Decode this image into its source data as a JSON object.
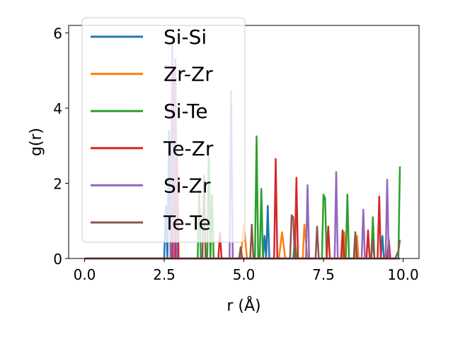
{
  "chart_data": {
    "type": "line",
    "title": "",
    "xlabel": "r (Å)",
    "ylabel": "g(r)",
    "xlim": [
      -0.5,
      10.5
    ],
    "ylim": [
      0,
      6.2
    ],
    "xticks": [
      0,
      2.5,
      5,
      7.5,
      10
    ],
    "xtick_labels": [
      "0.0",
      "2.5",
      "5.0",
      "7.5",
      "10.0"
    ],
    "yticks": [
      0,
      2,
      4,
      6
    ],
    "ytick_labels": [
      "0",
      "2",
      "4",
      "6"
    ],
    "grid": false,
    "legend_position": "top-left",
    "series": [
      {
        "name": "Si-Si",
        "color": "#1f77b4",
        "points": [
          [
            0,
            0
          ],
          [
            2.5,
            0
          ],
          [
            2.55,
            1.4
          ],
          [
            2.6,
            0
          ],
          [
            2.65,
            3.4
          ],
          [
            2.7,
            0
          ],
          [
            5.6,
            0
          ],
          [
            5.65,
            0.6
          ],
          [
            5.7,
            0
          ],
          [
            5.75,
            1.4
          ],
          [
            5.8,
            0
          ],
          [
            9.3,
            0
          ],
          [
            9.35,
            0.6
          ],
          [
            9.4,
            0
          ],
          [
            9.9,
            0
          ]
        ]
      },
      {
        "name": "Zr-Zr",
        "color": "#ff7f0e",
        "points": [
          [
            0,
            0
          ],
          [
            4.9,
            0
          ],
          [
            5.0,
            0.9
          ],
          [
            5.1,
            0
          ],
          [
            6.1,
            0
          ],
          [
            6.2,
            0.7
          ],
          [
            6.3,
            0
          ],
          [
            6.85,
            0
          ],
          [
            6.9,
            0.9
          ],
          [
            7.0,
            0
          ],
          [
            8.1,
            0
          ],
          [
            8.15,
            0.7
          ],
          [
            8.2,
            0
          ],
          [
            8.5,
            0
          ],
          [
            8.55,
            0.6
          ],
          [
            8.6,
            0
          ],
          [
            9.9,
            0
          ]
        ]
      },
      {
        "name": "Si-Te",
        "color": "#2ca02c",
        "points": [
          [
            0,
            0
          ],
          [
            3.55,
            0
          ],
          [
            3.6,
            1.8
          ],
          [
            3.65,
            0
          ],
          [
            3.85,
            0
          ],
          [
            3.9,
            3.0
          ],
          [
            3.95,
            0
          ],
          [
            4.0,
            1.7
          ],
          [
            4.05,
            0
          ],
          [
            5.35,
            0
          ],
          [
            5.4,
            3.25
          ],
          [
            5.45,
            0
          ],
          [
            5.5,
            0
          ],
          [
            5.55,
            1.85
          ],
          [
            5.6,
            0
          ],
          [
            6.55,
            0
          ],
          [
            6.6,
            0.5
          ],
          [
            6.65,
            0
          ],
          [
            7.45,
            0
          ],
          [
            7.5,
            1.7
          ],
          [
            7.55,
            1.6
          ],
          [
            7.6,
            0
          ],
          [
            8.2,
            0
          ],
          [
            8.25,
            1.7
          ],
          [
            8.3,
            0
          ],
          [
            9.0,
            0
          ],
          [
            9.05,
            1.1
          ],
          [
            9.1,
            0
          ],
          [
            9.85,
            0
          ],
          [
            9.9,
            2.45
          ]
        ]
      },
      {
        "name": "Te-Zr",
        "color": "#d62728",
        "points": [
          [
            0,
            0
          ],
          [
            2.75,
            0
          ],
          [
            2.8,
            5.0
          ],
          [
            2.85,
            0
          ],
          [
            2.9,
            2.9
          ],
          [
            2.95,
            0
          ],
          [
            4.2,
            0
          ],
          [
            4.25,
            0.7
          ],
          [
            4.3,
            0
          ],
          [
            5.95,
            0
          ],
          [
            6.0,
            2.65
          ],
          [
            6.05,
            0
          ],
          [
            6.6,
            0
          ],
          [
            6.65,
            2.15
          ],
          [
            6.7,
            0
          ],
          [
            7.6,
            0
          ],
          [
            7.65,
            0.85
          ],
          [
            7.7,
            0
          ],
          [
            8.05,
            0
          ],
          [
            8.1,
            0.75
          ],
          [
            8.15,
            0
          ],
          [
            8.85,
            0
          ],
          [
            8.9,
            0.75
          ],
          [
            8.95,
            0
          ],
          [
            9.2,
            0
          ],
          [
            9.25,
            1.65
          ],
          [
            9.3,
            0
          ],
          [
            9.5,
            0
          ],
          [
            9.55,
            0.5
          ],
          [
            9.6,
            0
          ],
          [
            9.9,
            0
          ]
        ]
      },
      {
        "name": "Si-Zr",
        "color": "#9467bd",
        "points": [
          [
            0,
            0
          ],
          [
            2.7,
            0
          ],
          [
            2.75,
            5.75
          ],
          [
            2.8,
            0
          ],
          [
            2.85,
            5.3
          ],
          [
            2.9,
            0
          ],
          [
            4.55,
            0
          ],
          [
            4.6,
            4.45
          ],
          [
            4.65,
            0
          ],
          [
            6.95,
            0
          ],
          [
            7.0,
            1.95
          ],
          [
            7.05,
            0
          ],
          [
            7.85,
            0
          ],
          [
            7.9,
            2.3
          ],
          [
            7.95,
            0
          ],
          [
            8.7,
            0
          ],
          [
            8.75,
            1.3
          ],
          [
            8.8,
            0
          ],
          [
            9.45,
            0
          ],
          [
            9.5,
            2.1
          ],
          [
            9.55,
            0
          ],
          [
            9.9,
            0
          ]
        ]
      },
      {
        "name": "Te-Te",
        "color": "#8c564b",
        "points": [
          [
            0,
            0
          ],
          [
            3.7,
            0
          ],
          [
            3.75,
            2.2
          ],
          [
            3.8,
            0
          ],
          [
            4.85,
            0
          ],
          [
            4.9,
            0.3
          ],
          [
            4.95,
            0
          ],
          [
            5.2,
            0
          ],
          [
            5.25,
            0.9
          ],
          [
            5.3,
            0
          ],
          [
            6.45,
            0
          ],
          [
            6.5,
            1.15
          ],
          [
            6.55,
            1.1
          ],
          [
            6.6,
            0
          ],
          [
            7.25,
            0
          ],
          [
            7.3,
            0.85
          ],
          [
            7.35,
            0
          ],
          [
            8.45,
            0
          ],
          [
            8.5,
            0.7
          ],
          [
            8.55,
            0
          ],
          [
            9.0,
            0
          ],
          [
            9.05,
            0.5
          ],
          [
            9.1,
            0
          ],
          [
            9.75,
            0
          ],
          [
            9.8,
            0.1
          ],
          [
            9.85,
            0.2
          ],
          [
            9.9,
            0.5
          ]
        ]
      }
    ]
  }
}
